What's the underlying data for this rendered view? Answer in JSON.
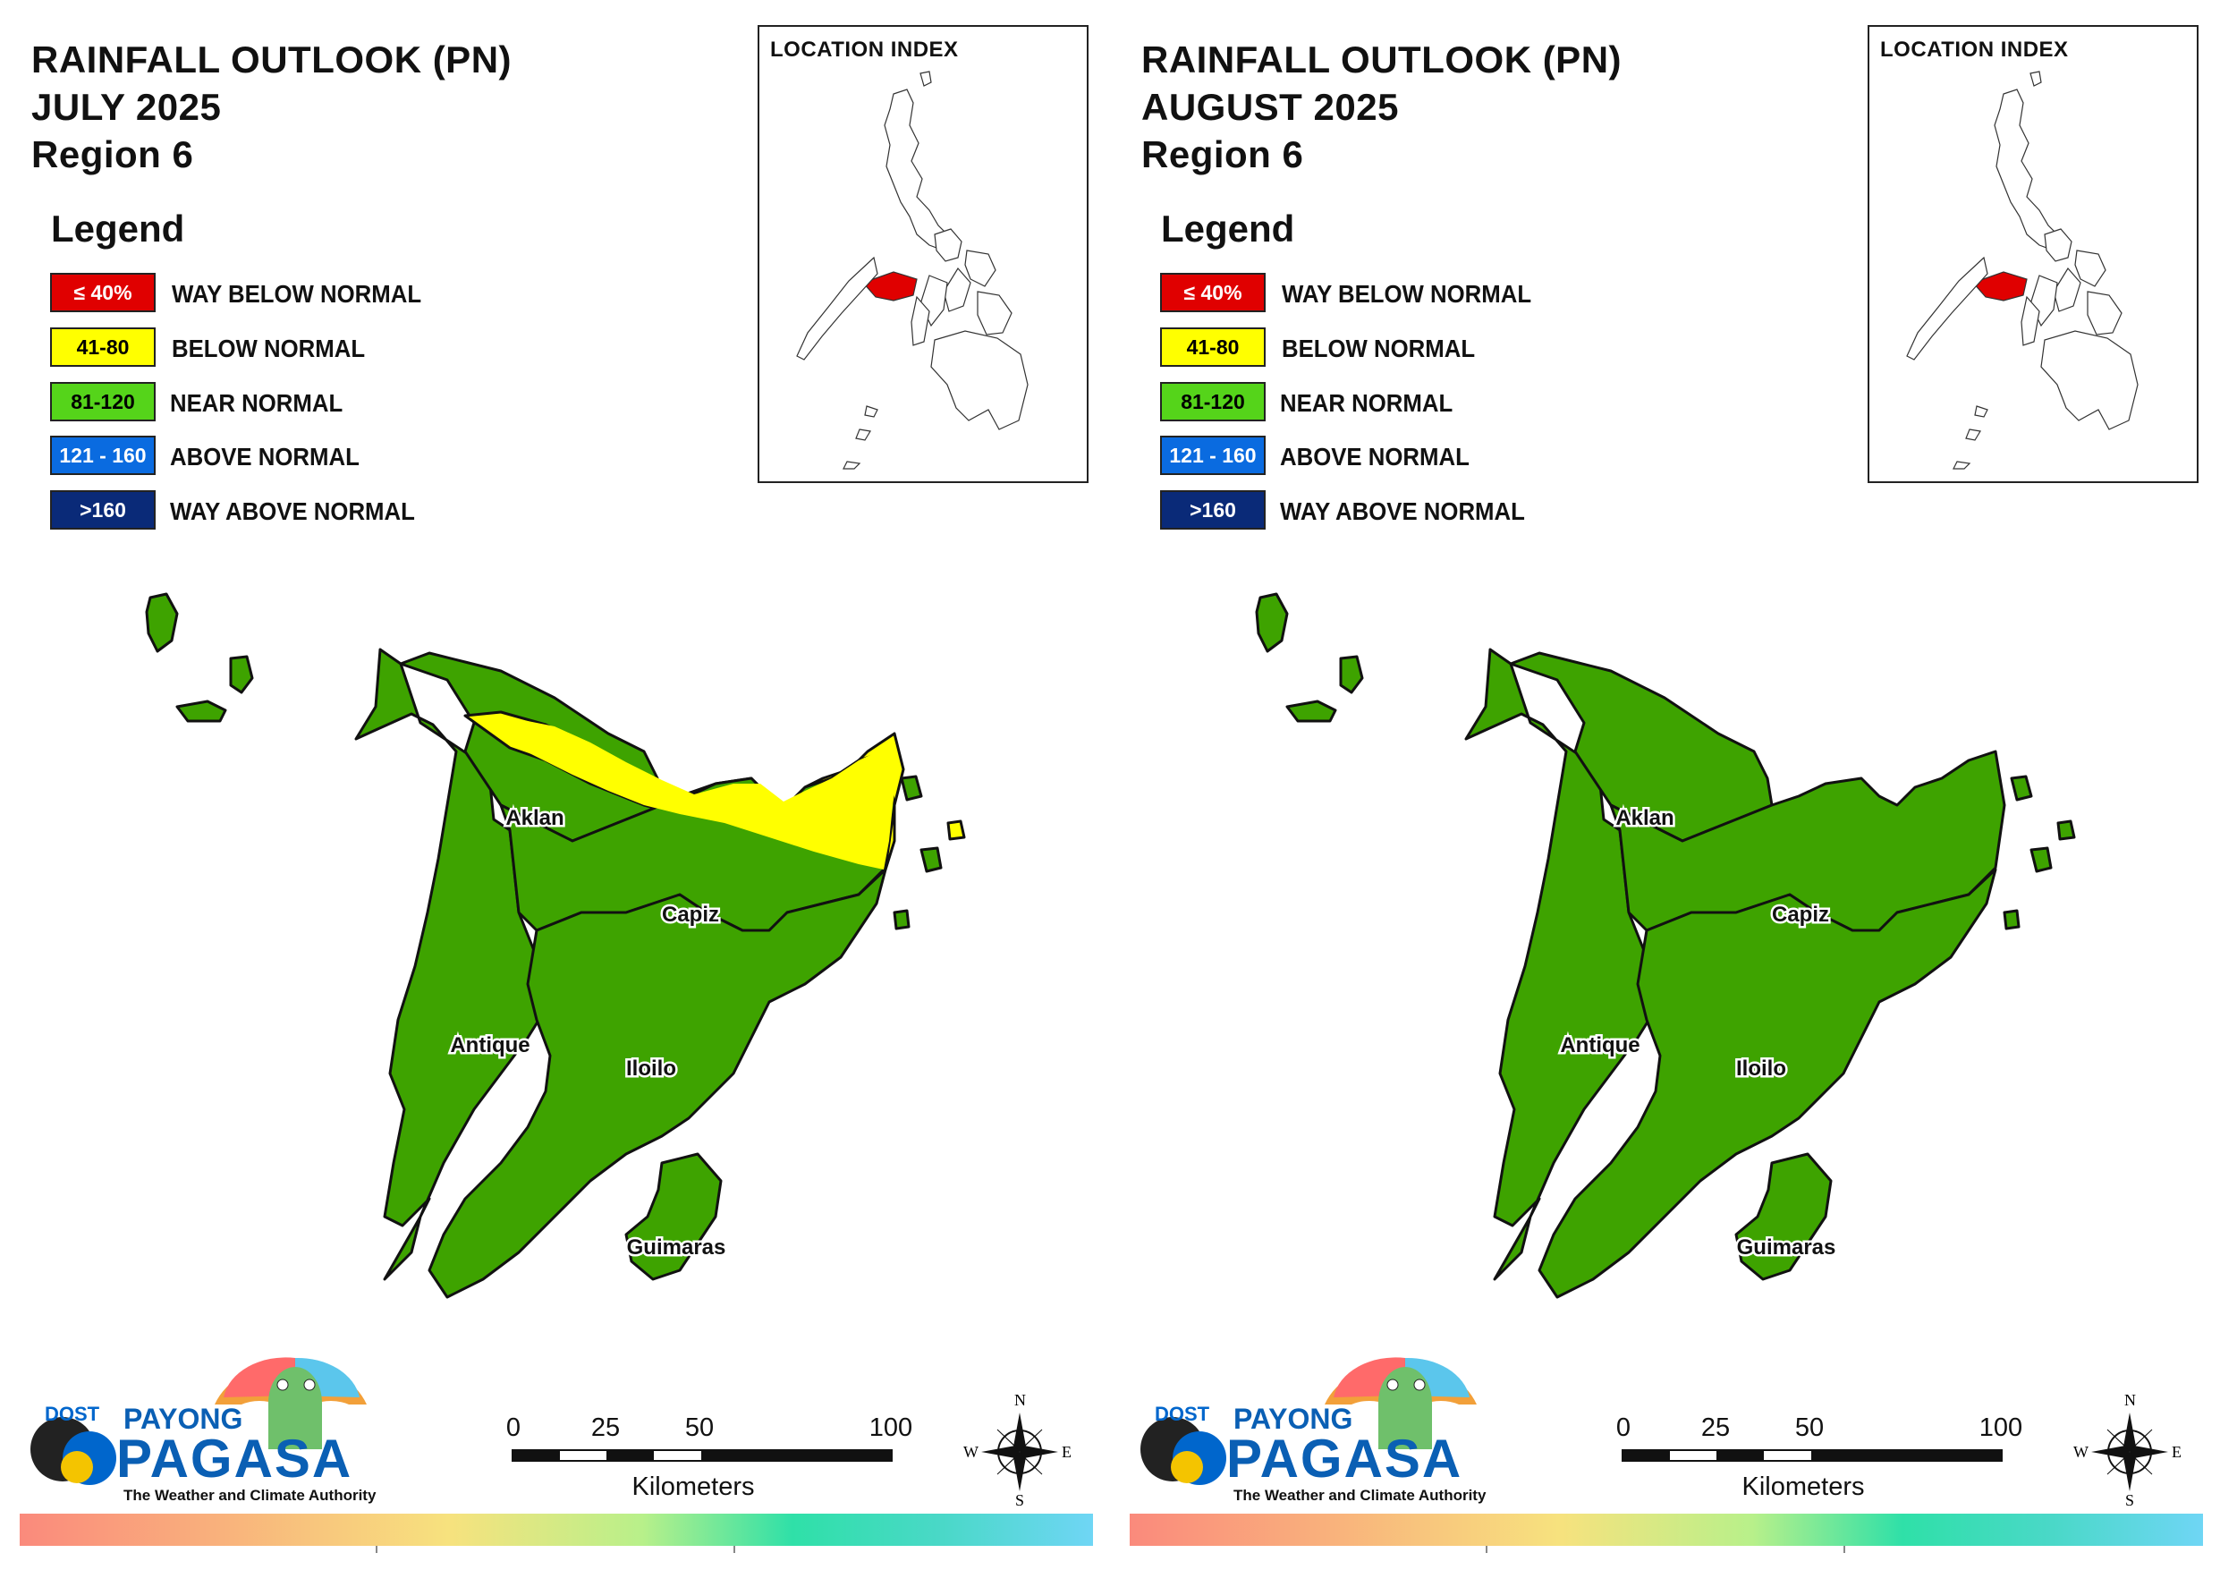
{
  "panels": [
    {
      "title_line1": "RAINFALL OUTLOOK (PN)",
      "title_line2": "JULY 2025",
      "title_line3": "Region 6",
      "month_key": "july",
      "provinces": {
        "aklan": "Aklan",
        "capiz": "Capiz",
        "antique": "Antique",
        "iloilo": "Iloilo",
        "guimaras": "Guimaras"
      },
      "categories_present": [
        "BELOW NORMAL",
        "NEAR NORMAL"
      ]
    },
    {
      "title_line1": "RAINFALL OUTLOOK (PN)",
      "title_line2": "AUGUST 2025",
      "title_line3": "Region 6",
      "month_key": "august",
      "provinces": {
        "aklan": "Aklan",
        "capiz": "Capiz",
        "antique": "Antique",
        "iloilo": "Iloilo",
        "guimaras": "Guimaras"
      },
      "categories_present": [
        "NEAR NORMAL"
      ]
    }
  ],
  "legend": {
    "heading": "Legend",
    "items": [
      {
        "range": "≤ 40%",
        "label": "WAY BELOW NORMAL",
        "color": "#e00000",
        "text_color": "#ffffff"
      },
      {
        "range": "41-80",
        "label": "BELOW NORMAL",
        "color": "#ffff00",
        "text_color": "#000000"
      },
      {
        "range": "81-120",
        "label": "NEAR NORMAL",
        "color": "#55d41a",
        "text_color": "#000000"
      },
      {
        "range": "121 - 160",
        "label": "ABOVE NORMAL",
        "color": "#0a6be0",
        "text_color": "#ffffff"
      },
      {
        "range": ">160",
        "label": "WAY ABOVE NORMAL",
        "color": "#0a2a78",
        "text_color": "#ffffff"
      }
    ]
  },
  "inset": {
    "title": "LOCATION INDEX",
    "highlight_color": "#e00000"
  },
  "scale": {
    "ticks": [
      "0",
      "25",
      "50",
      "100"
    ],
    "unit": "Kilometers"
  },
  "compass": {
    "n": "N",
    "s": "S",
    "e": "E",
    "w": "W"
  },
  "branding": {
    "dost": "DOST",
    "payong": "PAYONG",
    "pagasa": "PAGASA",
    "tagline": "The Weather and Climate Authority"
  },
  "map_colors": {
    "near_normal": "#3ea300",
    "below_normal": "#ffff00",
    "outline": "#111111"
  }
}
